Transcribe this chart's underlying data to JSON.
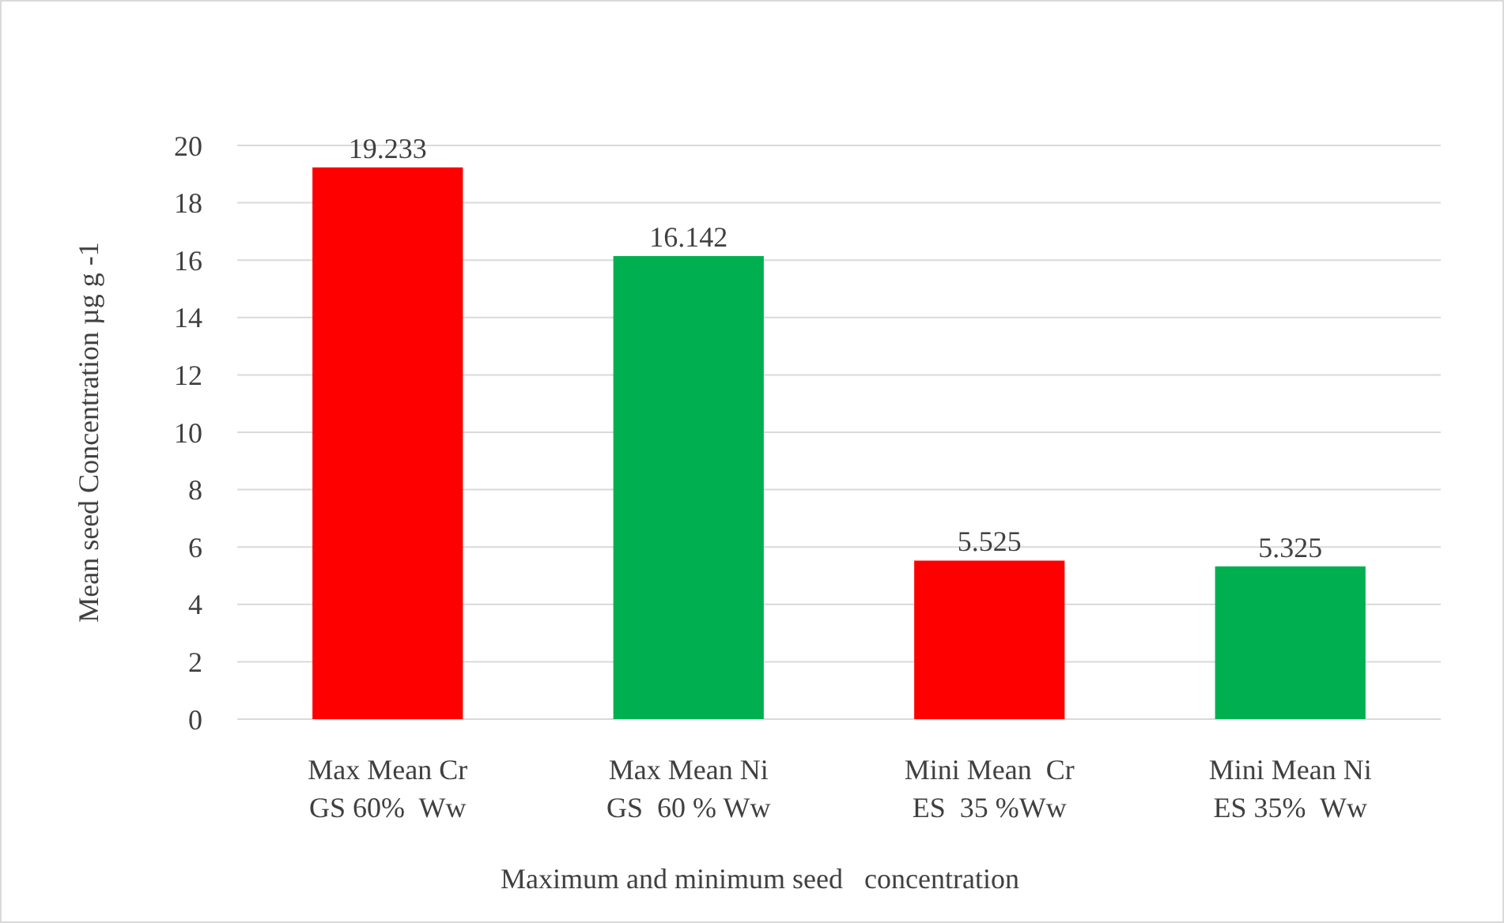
{
  "chart_data": {
    "type": "bar",
    "categories": [
      "Max Mean Cr\nGS 60%  Ww",
      "Max Mean Ni\nGS  60 % Ww",
      "Mini Mean  Cr\nES  35 %Ww",
      "Mini Mean Ni\nES 35%  Ww"
    ],
    "values": [
      19.233,
      16.142,
      5.525,
      5.325
    ],
    "colors": [
      "#ff0000",
      "#00b050",
      "#ff0000",
      "#00b050"
    ],
    "xlabel": "Maximum and minimum seed   concentration",
    "ylabel": "Mean seed Concentration  µg g -1",
    "ylim": [
      0,
      20
    ],
    "yticks": [
      0,
      2,
      4,
      6,
      8,
      10,
      12,
      14,
      16,
      18,
      20
    ],
    "grid": "y",
    "data_labels": true
  }
}
